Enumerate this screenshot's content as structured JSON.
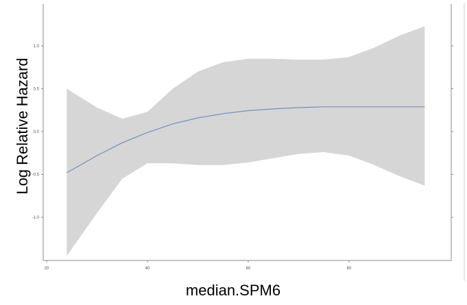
{
  "chart_data": {
    "type": "line",
    "title": "",
    "xlabel": "median.SPM6",
    "ylabel": "Log Relative Hazard",
    "xlim": [
      20,
      100
    ],
    "ylim": [
      -1.5,
      1.5
    ],
    "x_ticks": [
      20,
      40,
      60,
      80
    ],
    "x_tick_labels": [
      "20",
      "40",
      "60",
      "80"
    ],
    "y_ticks": [
      -1.0,
      -0.5,
      0.0,
      0.5,
      1.0
    ],
    "y_tick_labels": [
      "-1.0",
      "-0.5",
      "0.0",
      "0.5",
      "1.0"
    ],
    "grid": false,
    "series": [
      {
        "x": [
          24,
          30,
          35,
          40,
          45,
          50,
          55,
          60,
          65,
          70,
          75,
          80,
          85,
          90,
          95
        ],
        "y": [
          -0.48,
          -0.28,
          -0.13,
          -0.01,
          0.09,
          0.16,
          0.21,
          0.245,
          0.265,
          0.28,
          0.29,
          0.29,
          0.29,
          0.29,
          0.29
        ],
        "lower": [
          -1.45,
          -0.95,
          -0.55,
          -0.37,
          -0.37,
          -0.39,
          -0.39,
          -0.36,
          -0.31,
          -0.26,
          -0.24,
          -0.28,
          -0.39,
          -0.52,
          -0.63
        ],
        "upper": [
          0.5,
          0.28,
          0.15,
          0.23,
          0.5,
          0.7,
          0.81,
          0.85,
          0.85,
          0.84,
          0.84,
          0.87,
          0.98,
          1.12,
          1.23
        ],
        "line_color": "#6b8fbf",
        "band_color": "#d6d6d6"
      }
    ]
  }
}
